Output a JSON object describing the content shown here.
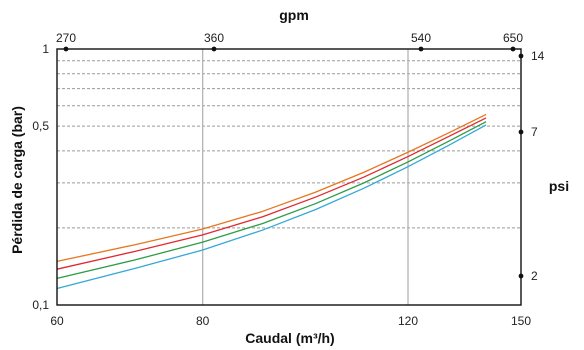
{
  "chart_data": {
    "type": "line",
    "title": "",
    "xlabel": "Caudal (m³/h)",
    "ylabel": "Pérdida de carga (bar)",
    "top_axis_label": "gpm",
    "right_axis_label": "psi",
    "x_scale": "log",
    "y_scale": "log",
    "xlim": [
      60,
      150
    ],
    "ylim": [
      0.1,
      1
    ],
    "x_ticks": [
      60,
      80,
      120,
      150
    ],
    "x_tick_labels": [
      "60",
      "80",
      "120",
      "150"
    ],
    "y_ticks": [
      0.1,
      0.5,
      1
    ],
    "y_tick_labels": [
      "0,1",
      "0,5",
      "1"
    ],
    "top_ticks": [
      "270",
      "360",
      "540",
      "650"
    ],
    "right_ticks": [
      "2",
      "7",
      "14"
    ],
    "grid": true,
    "legend": "none",
    "series": [
      {
        "color": "#e8761e",
        "x": [
          60,
          70,
          80,
          90,
          100,
          110,
          120,
          130,
          140
        ],
        "y": [
          0.148,
          0.172,
          0.198,
          0.232,
          0.276,
          0.33,
          0.395,
          0.47,
          0.555
        ]
      },
      {
        "color": "#e02a30",
        "x": [
          60,
          70,
          80,
          90,
          100,
          110,
          120,
          130,
          140
        ],
        "y": [
          0.138,
          0.162,
          0.188,
          0.221,
          0.264,
          0.316,
          0.38,
          0.455,
          0.538
        ]
      },
      {
        "color": "#2e9c46",
        "x": [
          60,
          70,
          80,
          90,
          100,
          110,
          120,
          130,
          140
        ],
        "y": [
          0.127,
          0.15,
          0.176,
          0.208,
          0.249,
          0.3,
          0.362,
          0.436,
          0.52
        ]
      },
      {
        "color": "#35a9d6",
        "x": [
          60,
          70,
          80,
          90,
          100,
          110,
          120,
          130,
          140
        ],
        "y": [
          0.116,
          0.139,
          0.164,
          0.196,
          0.236,
          0.286,
          0.347,
          0.42,
          0.505
        ]
      }
    ]
  }
}
